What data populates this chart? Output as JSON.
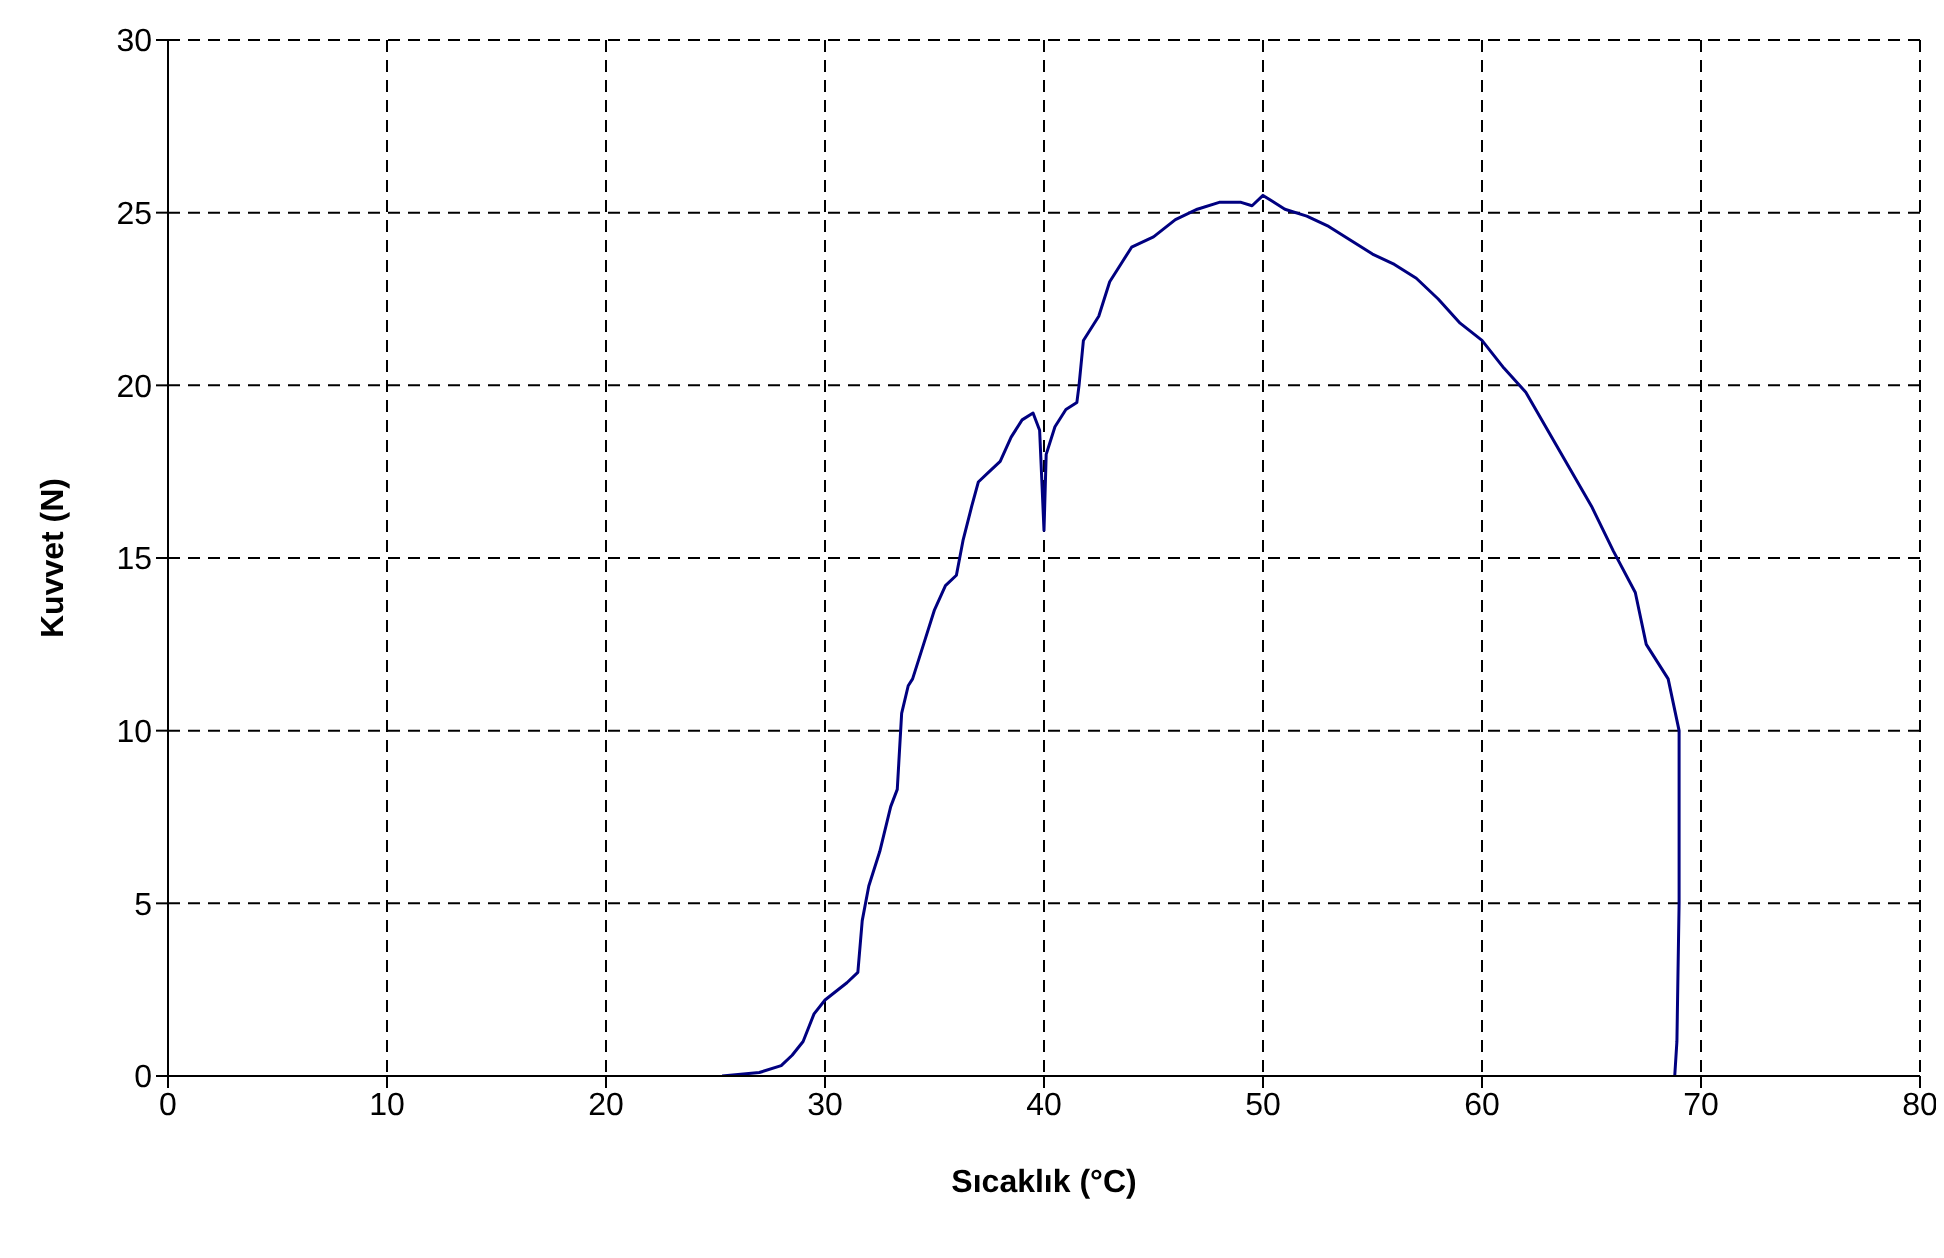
{
  "chart_data": {
    "type": "line",
    "xlabel": "Sıcaklık  (°C)",
    "ylabel": "Kuvvet (N)",
    "xlim": [
      0,
      80
    ],
    "xticks": [
      0,
      10,
      20,
      30,
      40,
      50,
      60,
      70,
      80
    ],
    "ylim": [
      0,
      30
    ],
    "yticks": [
      0,
      5,
      10,
      15,
      20,
      25,
      30
    ],
    "grid": true,
    "marker": "none",
    "line_style": "solid",
    "series": [
      {
        "color": "#000080",
        "x": [
          25.3,
          27,
          28,
          28.5,
          29,
          29.5,
          30,
          31,
          31.5,
          31.7,
          32,
          32.5,
          33,
          33.3,
          33.5,
          33.8,
          34,
          34.5,
          35,
          35.5,
          36,
          36.3,
          36.7,
          37,
          37.5,
          38,
          38.5,
          39,
          39.5,
          39.8,
          40,
          40.1,
          40.5,
          41,
          41.5,
          41.6,
          41.8,
          42.5,
          43,
          43.5,
          44,
          45,
          46,
          47,
          48,
          49,
          49.5,
          50,
          51,
          52,
          53,
          54,
          55,
          56,
          57,
          58,
          59,
          60,
          61,
          62,
          63,
          64,
          65,
          66,
          67,
          67.5,
          68.5,
          69,
          69,
          68.9,
          68.8
        ],
        "values": [
          0,
          0.1,
          0.3,
          0.6,
          1,
          1.8,
          2.2,
          2.7,
          3,
          4.5,
          5.5,
          6.5,
          7.8,
          8.3,
          10.5,
          11.3,
          11.5,
          12.5,
          13.5,
          14.2,
          14.5,
          15.5,
          16.5,
          17.2,
          17.5,
          17.8,
          18.5,
          19,
          19.2,
          18.7,
          15.8,
          18,
          18.8,
          19.3,
          19.5,
          20,
          21.3,
          22,
          23,
          23.5,
          24,
          24.3,
          24.8,
          25.1,
          25.3,
          25.3,
          25.2,
          25.5,
          25.1,
          24.9,
          24.6,
          24.2,
          23.8,
          23.5,
          23.1,
          22.5,
          21.8,
          21.3,
          20.5,
          19.8,
          18.7,
          17.6,
          16.5,
          15.2,
          14,
          12.5,
          11.5,
          10,
          5,
          1,
          0
        ]
      }
    ]
  }
}
